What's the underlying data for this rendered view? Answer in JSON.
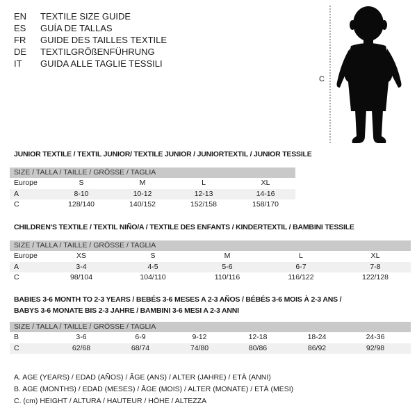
{
  "titles": [
    {
      "code": "EN",
      "text": "TEXTILE SIZE GUIDE"
    },
    {
      "code": "ES",
      "text": "GUÍA DE TALLAS"
    },
    {
      "code": "FR",
      "text": "GUIDE DES TAILLES TEXTILE"
    },
    {
      "code": "DE",
      "text": "TEXTILGRÖßENFÜHRUNG"
    },
    {
      "code": "IT",
      "text": "GUIDA ALLE TAGLIE TESSILI"
    }
  ],
  "figure": {
    "measure_label": "C"
  },
  "junior": {
    "title": "JUNIOR TEXTILE / TEXTIL JUNIOR/ TEXTILE JUNIOR / JUNIORTEXTIL / JUNIOR TESSILE",
    "header": "SIZE / TALLA / TAILLE / GRÖSSE / TAGLIA",
    "rows": [
      {
        "label": "Europe",
        "values": [
          "S",
          "M",
          "L",
          "XL"
        ]
      },
      {
        "label": "A",
        "values": [
          "8-10",
          "10-12",
          "12-13",
          "14-16"
        ]
      },
      {
        "label": "C",
        "values": [
          "128/140",
          "140/152",
          "152/158",
          "158/170"
        ]
      }
    ]
  },
  "children": {
    "title": "CHILDREN'S TEXTILE / TEXTIL NIÑO/A / TEXTILE DES ENFANTS / KINDERTEXTIL / BAMBINI TESSILE",
    "header": "SIZE / TALLA / TAILLE / GRÖSSE / TAGLIA",
    "rows": [
      {
        "label": "Europe",
        "values": [
          "XS",
          "S",
          "M",
          "L",
          "XL"
        ]
      },
      {
        "label": "A",
        "values": [
          "3-4",
          "4-5",
          "5-6",
          "6-7",
          "7-8"
        ]
      },
      {
        "label": "C",
        "values": [
          "98/104",
          "104/110",
          "110/116",
          "116/122",
          "122/128"
        ]
      }
    ]
  },
  "babies": {
    "title_line1": "BABIES 3-6 MONTH TO 2-3 YEARS / BEBÉS 3-6 MESES A 2-3 AÑOS / BÉBÉS 3-6 MOIS À 2-3 ANS /",
    "title_line2": "BABYS 3-6 MONATE BIS 2-3 JAHRE / BAMBINI 3-6 MESI A 2-3 ANNI",
    "header": "SIZE / TALLA / TAILLE / GRÖSSE / TAGLIA",
    "rows": [
      {
        "label": "B",
        "values": [
          "3-6",
          "6-9",
          "9-12",
          "12-18",
          "18-24",
          "24-36"
        ]
      },
      {
        "label": "C",
        "values": [
          "62/68",
          "68/74",
          "74/80",
          "80/86",
          "86/92",
          "92/98"
        ]
      }
    ]
  },
  "legend": [
    "A. AGE (YEARS) / EDAD (AÑOS) / ÂGE (ANS) / ALTER (JAHRE) / ETÀ (ANNI)",
    "B. AGE (MONTHS) / EDAD (MESES) / ÂGE (MOIS) / ALTER (MONATE) / ETÀ (MESI)",
    "C. (cm) HEIGHT / ALTURA / HAUTEUR / HÖHE / ALTEZZA"
  ]
}
